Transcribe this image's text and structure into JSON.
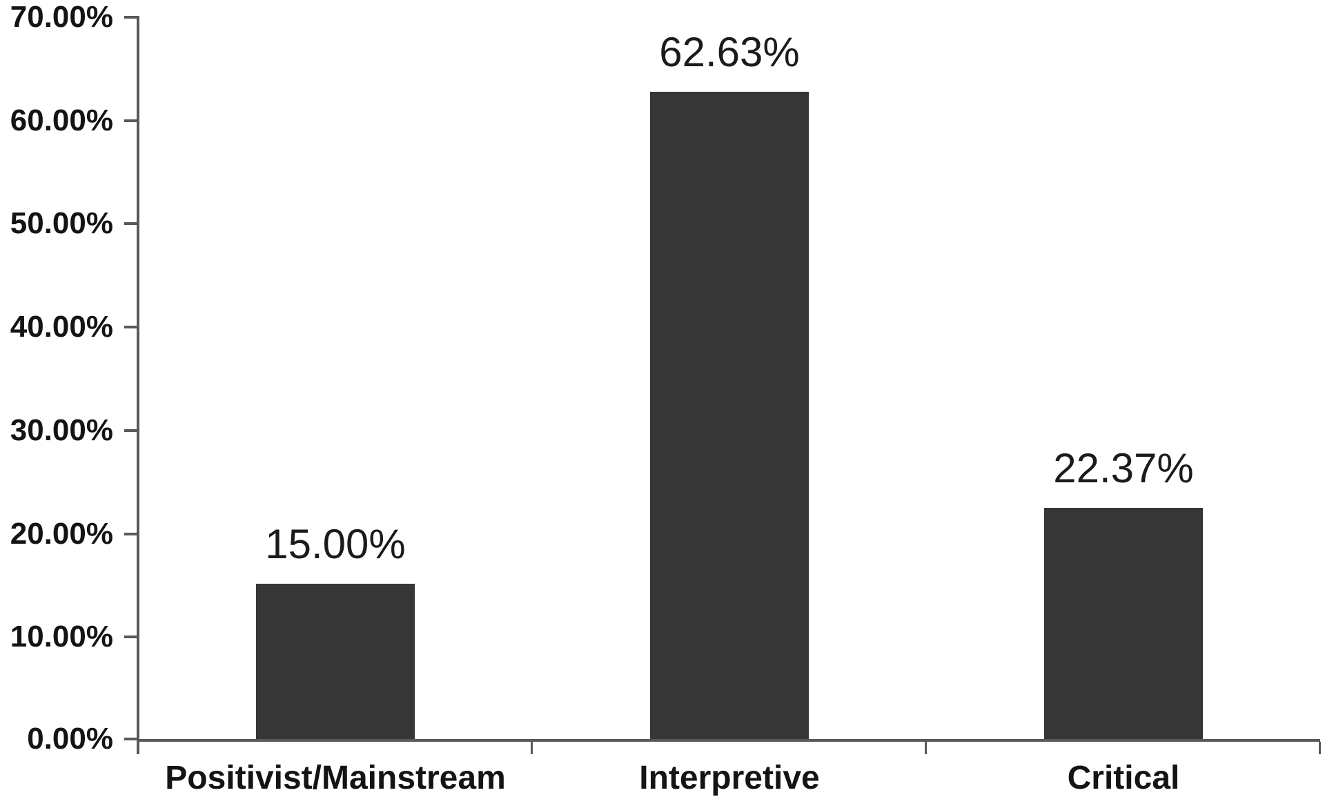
{
  "chart_data": {
    "type": "bar",
    "title": "",
    "xlabel": "",
    "ylabel": "",
    "categories": [
      "Positivist/Mainstream",
      "Interpretive",
      "Critical"
    ],
    "values": [
      15.0,
      62.63,
      22.37
    ],
    "data_labels": [
      "15.00%",
      "62.63%",
      "22.37%"
    ],
    "ylim": [
      0,
      70
    ],
    "ytick_step": 10,
    "ytick_labels": [
      "0.00%",
      "10.00%",
      "20.00%",
      "30.00%",
      "40.00%",
      "50.00%",
      "60.00%",
      "70.00%"
    ],
    "grid": false,
    "legend": "none",
    "bar_color": "#363636",
    "axis_color": "#595959",
    "label_color": "#141414"
  }
}
